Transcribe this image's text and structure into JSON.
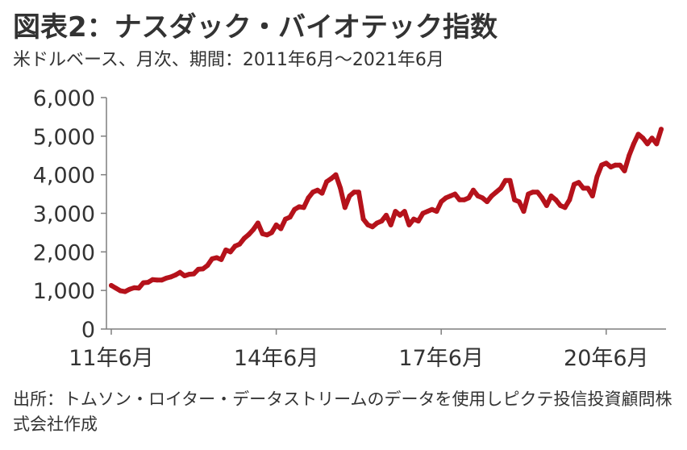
{
  "header": {
    "title": "図表2：ナスダック・バイオテック指数",
    "subtitle": "米ドルベース、月次、期間：2011年6月～2021年6月"
  },
  "source_note": "出所：トムソン・ロイター・データストリームのデータを使用しピクテ投信投資顧問株式会社作成",
  "colors": {
    "series": "#b5121b",
    "axis": "#7f7f7f",
    "text": "#333333"
  },
  "chart_data": {
    "type": "line",
    "title": "図表2：ナスダック・バイオテック指数",
    "subtitle": "米ドルベース、月次、期間：2011年6月～2021年6月",
    "xlabel": "",
    "ylabel": "",
    "ylim": [
      0,
      6000
    ],
    "yticks": [
      0,
      1000,
      2000,
      3000,
      4000,
      5000,
      6000
    ],
    "ytick_labels": [
      "0",
      "1,000",
      "2,000",
      "3,000",
      "4,000",
      "5,000",
      "6,000"
    ],
    "xtick_labels": [
      "11年6月",
      "14年6月",
      "17年6月",
      "20年6月"
    ],
    "xtick_values": [
      "2011-06",
      "2014-06",
      "2017-06",
      "2020-06"
    ],
    "grid": false,
    "legend": "none",
    "series": [
      {
        "values": [
          [
            "2011-06",
            1130
          ],
          [
            "2011-07",
            1060
          ],
          [
            "2011-08",
            990
          ],
          [
            "2011-09",
            970
          ],
          [
            "2011-10",
            1030
          ],
          [
            "2011-11",
            1070
          ],
          [
            "2011-12",
            1060
          ],
          [
            "2012-01",
            1200
          ],
          [
            "2012-02",
            1210
          ],
          [
            "2012-03",
            1280
          ],
          [
            "2012-04",
            1270
          ],
          [
            "2012-05",
            1270
          ],
          [
            "2012-06",
            1320
          ],
          [
            "2012-07",
            1350
          ],
          [
            "2012-08",
            1400
          ],
          [
            "2012-09",
            1470
          ],
          [
            "2012-10",
            1380
          ],
          [
            "2012-11",
            1420
          ],
          [
            "2012-12",
            1430
          ],
          [
            "2013-01",
            1550
          ],
          [
            "2013-02",
            1560
          ],
          [
            "2013-03",
            1650
          ],
          [
            "2013-04",
            1820
          ],
          [
            "2013-05",
            1850
          ],
          [
            "2013-06",
            1800
          ],
          [
            "2013-07",
            2050
          ],
          [
            "2013-08",
            2000
          ],
          [
            "2013-09",
            2150
          ],
          [
            "2013-10",
            2200
          ],
          [
            "2013-11",
            2350
          ],
          [
            "2013-12",
            2450
          ],
          [
            "2014-01",
            2580
          ],
          [
            "2014-02",
            2750
          ],
          [
            "2014-03",
            2470
          ],
          [
            "2014-04",
            2440
          ],
          [
            "2014-05",
            2500
          ],
          [
            "2014-06",
            2700
          ],
          [
            "2014-07",
            2600
          ],
          [
            "2014-08",
            2850
          ],
          [
            "2014-09",
            2900
          ],
          [
            "2014-10",
            3100
          ],
          [
            "2014-11",
            3170
          ],
          [
            "2014-12",
            3150
          ],
          [
            "2015-01",
            3400
          ],
          [
            "2015-02",
            3550
          ],
          [
            "2015-03",
            3600
          ],
          [
            "2015-04",
            3520
          ],
          [
            "2015-05",
            3820
          ],
          [
            "2015-06",
            3900
          ],
          [
            "2015-07",
            4000
          ],
          [
            "2015-08",
            3650
          ],
          [
            "2015-09",
            3150
          ],
          [
            "2015-10",
            3450
          ],
          [
            "2015-11",
            3550
          ],
          [
            "2015-12",
            3550
          ],
          [
            "2016-01",
            2850
          ],
          [
            "2016-02",
            2700
          ],
          [
            "2016-03",
            2650
          ],
          [
            "2016-04",
            2750
          ],
          [
            "2016-05",
            2800
          ],
          [
            "2016-06",
            2950
          ],
          [
            "2016-07",
            2700
          ],
          [
            "2016-08",
            3050
          ],
          [
            "2016-09",
            2950
          ],
          [
            "2016-10",
            3050
          ],
          [
            "2016-11",
            2700
          ],
          [
            "2016-12",
            2850
          ],
          [
            "2017-01",
            2800
          ],
          [
            "2017-02",
            3000
          ],
          [
            "2017-03",
            3050
          ],
          [
            "2017-04",
            3100
          ],
          [
            "2017-05",
            3050
          ],
          [
            "2017-06",
            3300
          ],
          [
            "2017-07",
            3400
          ],
          [
            "2017-08",
            3450
          ],
          [
            "2017-09",
            3500
          ],
          [
            "2017-10",
            3350
          ],
          [
            "2017-11",
            3350
          ],
          [
            "2017-12",
            3400
          ],
          [
            "2018-01",
            3600
          ],
          [
            "2018-02",
            3450
          ],
          [
            "2018-03",
            3400
          ],
          [
            "2018-04",
            3300
          ],
          [
            "2018-05",
            3450
          ],
          [
            "2018-06",
            3550
          ],
          [
            "2018-07",
            3650
          ],
          [
            "2018-08",
            3850
          ],
          [
            "2018-09",
            3850
          ],
          [
            "2018-10",
            3350
          ],
          [
            "2018-11",
            3300
          ],
          [
            "2018-12",
            3050
          ],
          [
            "2019-01",
            3500
          ],
          [
            "2019-02",
            3550
          ],
          [
            "2019-03",
            3550
          ],
          [
            "2019-04",
            3400
          ],
          [
            "2019-05",
            3200
          ],
          [
            "2019-06",
            3450
          ],
          [
            "2019-07",
            3350
          ],
          [
            "2019-08",
            3200
          ],
          [
            "2019-09",
            3150
          ],
          [
            "2019-10",
            3350
          ],
          [
            "2019-11",
            3750
          ],
          [
            "2019-12",
            3800
          ],
          [
            "2020-01",
            3650
          ],
          [
            "2020-02",
            3650
          ],
          [
            "2020-03",
            3450
          ],
          [
            "2020-04",
            3950
          ],
          [
            "2020-05",
            4250
          ],
          [
            "2020-06",
            4300
          ],
          [
            "2020-07",
            4200
          ],
          [
            "2020-08",
            4250
          ],
          [
            "2020-09",
            4250
          ],
          [
            "2020-10",
            4100
          ],
          [
            "2020-11",
            4500
          ],
          [
            "2020-12",
            4800
          ],
          [
            "2021-01",
            5050
          ],
          [
            "2021-02",
            4950
          ],
          [
            "2021-03",
            4800
          ],
          [
            "2021-04",
            4950
          ],
          [
            "2021-05",
            4800
          ],
          [
            "2021-06",
            5180
          ]
        ]
      }
    ]
  }
}
